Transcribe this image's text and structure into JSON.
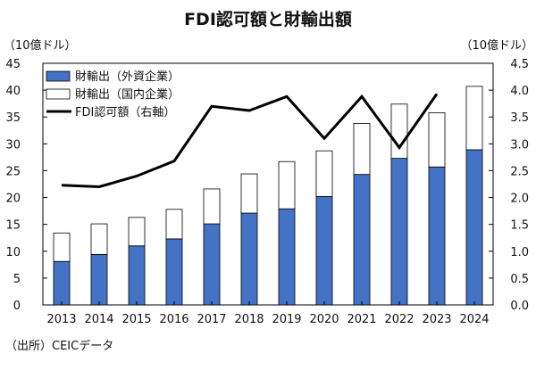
{
  "chart_data": {
    "type": "bar",
    "title": "FDI認可額と財輸出額",
    "y_left_unit": "（10億ドル）",
    "y_right_unit": "（10億ドル）",
    "categories": [
      "2013",
      "2014",
      "2015",
      "2016",
      "2017",
      "2018",
      "2019",
      "2020",
      "2021",
      "2022",
      "2023",
      "2024"
    ],
    "ylim_left": [
      0,
      45
    ],
    "yticks_left": [
      "0",
      "5",
      "10",
      "15",
      "20",
      "25",
      "30",
      "35",
      "40",
      "45"
    ],
    "ylim_right": [
      0,
      4.5
    ],
    "yticks_right": [
      "0.0",
      "0.5",
      "1.0",
      "1.5",
      "2.0",
      "2.5",
      "3.0",
      "3.5",
      "4.0",
      "4.5"
    ],
    "series": [
      {
        "name": "財輸出（外資企業）",
        "kind": "stacked-bar",
        "axis": "left",
        "color": "#4472c4",
        "values": [
          8.1,
          9.4,
          11.0,
          12.3,
          15.1,
          17.1,
          17.9,
          20.2,
          24.3,
          27.3,
          25.7,
          28.9
        ]
      },
      {
        "name": "財輸出（国内企業）",
        "kind": "stacked-bar",
        "axis": "left",
        "color": "#ffffff",
        "values": [
          5.3,
          5.7,
          5.3,
          5.5,
          6.5,
          7.3,
          8.8,
          8.5,
          9.5,
          10.1,
          10.1,
          11.8
        ]
      },
      {
        "name": "FDI認可額（右軸）",
        "kind": "line",
        "axis": "right",
        "color": "#000000",
        "values": [
          2.23,
          2.2,
          2.4,
          2.68,
          3.7,
          3.62,
          3.88,
          3.1,
          3.88,
          2.93,
          3.93,
          null
        ]
      }
    ],
    "source": "（出所）CEICデータ"
  }
}
